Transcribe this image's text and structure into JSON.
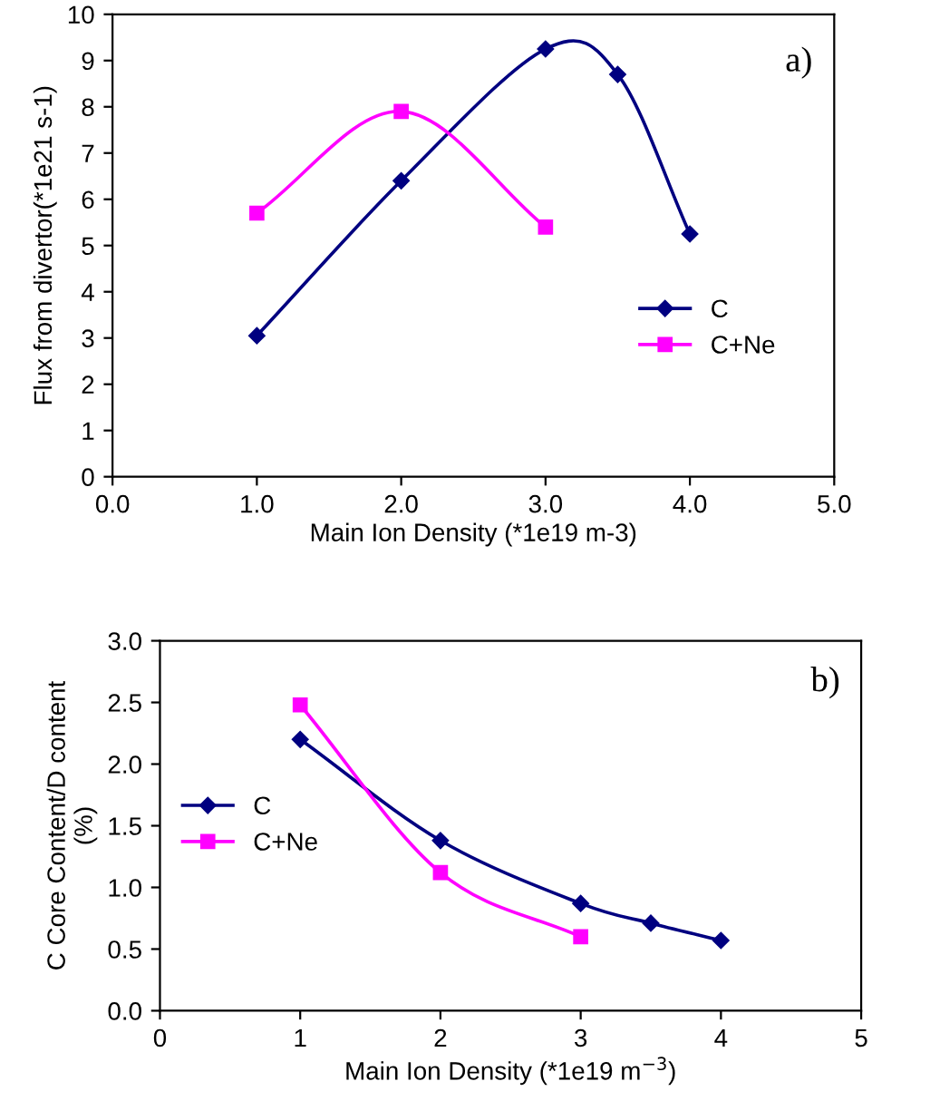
{
  "chart_data": [
    {
      "type": "line",
      "xlabel": "Main Ion Density (*1e19 m-3)",
      "ylabel": "Flux from divertor(*1e21 s-1)",
      "annotations": [
        "a)"
      ],
      "xlim": [
        0,
        5
      ],
      "xticks": [
        {
          "value": 0,
          "label": "0.0"
        },
        {
          "value": 1,
          "label": "1.0"
        },
        {
          "value": 2,
          "label": "2.0"
        },
        {
          "value": 3,
          "label": "3.0"
        },
        {
          "value": 4,
          "label": "4.0"
        },
        {
          "value": 5,
          "label": "5.0"
        }
      ],
      "ylim": [
        0,
        10
      ],
      "yticks": [
        0,
        1,
        2,
        3,
        4,
        5,
        6,
        7,
        8,
        9,
        10
      ],
      "grid": false,
      "legend": "right",
      "series": [
        {
          "name": "C",
          "color": "#000080",
          "marker": "diamond",
          "x": [
            1,
            2,
            3,
            3.5,
            4
          ],
          "values": [
            3.05,
            6.4,
            9.25,
            8.7,
            5.25
          ]
        },
        {
          "name": "C+Ne",
          "color": "#ff00ff",
          "marker": "square",
          "x": [
            1,
            2,
            3
          ],
          "values": [
            5.7,
            7.9,
            5.4
          ]
        }
      ]
    },
    {
      "type": "line",
      "xlabel": "Main Ion Density (*1e19 m$^{−3}$)",
      "ylabel": "C Core Content/D content\n(%)",
      "annotations": [
        "b)"
      ],
      "xlim": [
        0,
        5
      ],
      "xticks": [
        0,
        1,
        2,
        3,
        4,
        5
      ],
      "ylim": [
        0,
        3
      ],
      "yticks": [
        {
          "value": 0,
          "label": "0.0"
        },
        {
          "value": 0.5,
          "label": "0.5"
        },
        {
          "value": 1,
          "label": "1.0"
        },
        {
          "value": 1.5,
          "label": "1.5"
        },
        {
          "value": 2,
          "label": "2.0"
        },
        {
          "value": 2.5,
          "label": "2.5"
        },
        {
          "value": 3,
          "label": "3.0"
        }
      ],
      "grid": false,
      "legend": "left",
      "series": [
        {
          "name": "C",
          "color": "#000080",
          "marker": "diamond",
          "x": [
            1,
            2,
            3,
            3.5,
            4
          ],
          "values": [
            2.2,
            1.38,
            0.87,
            0.71,
            0.57
          ]
        },
        {
          "name": "C+Ne",
          "color": "#ff00ff",
          "marker": "square",
          "x": [
            1,
            2,
            3
          ],
          "values": [
            2.48,
            1.12,
            0.6
          ]
        }
      ]
    }
  ]
}
